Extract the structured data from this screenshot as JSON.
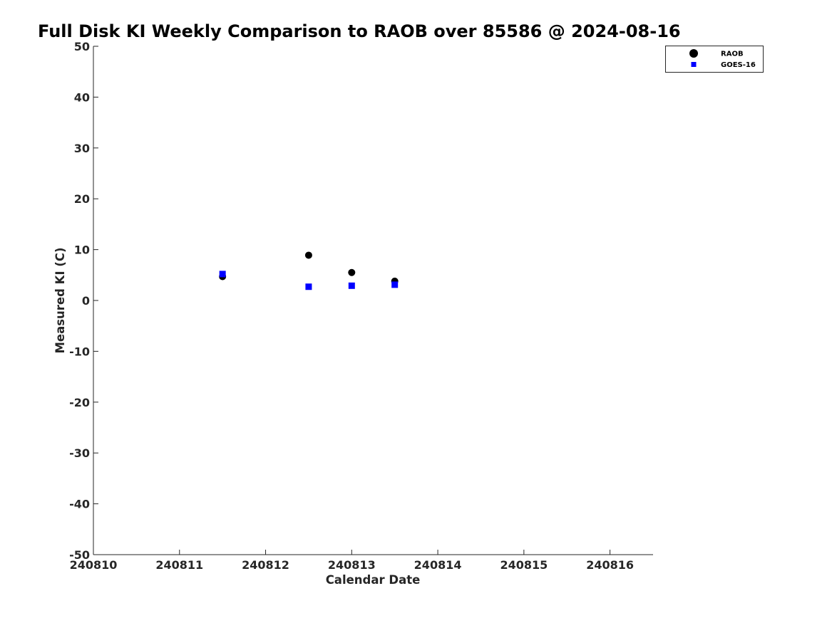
{
  "chart_data": {
    "type": "scatter",
    "title": "Full Disk KI Weekly Comparison to RAOB over 85586 @ 2024-08-16",
    "xlabel": "Calendar Date",
    "ylabel": "Measured KI (C)",
    "xlim": [
      240810,
      240816.5
    ],
    "ylim": [
      -50,
      50
    ],
    "x_ticks": [
      240810,
      240811,
      240812,
      240813,
      240814,
      240815,
      240816
    ],
    "x_tick_labels": [
      "240810",
      "240811",
      "240812",
      "240813",
      "240814",
      "240815",
      "240816"
    ],
    "y_ticks": [
      50,
      40,
      30,
      20,
      10,
      0,
      -10,
      -20,
      -30,
      -40,
      -50
    ],
    "y_tick_labels": [
      "50",
      "40",
      "30",
      "20",
      "10",
      "0",
      "-10",
      "-20",
      "-30",
      "-40",
      "-50"
    ],
    "grid": false,
    "legend_position": "top-right",
    "series": [
      {
        "name": "RAOB",
        "marker": "circle",
        "color": "#000000",
        "points": [
          {
            "x": 240811.5,
            "y": 4.7
          },
          {
            "x": 240812.5,
            "y": 8.9
          },
          {
            "x": 240813.0,
            "y": 5.5
          },
          {
            "x": 240813.5,
            "y": 3.8
          }
        ]
      },
      {
        "name": "GOES-16",
        "marker": "square",
        "color": "#0000ff",
        "points": [
          {
            "x": 240811.5,
            "y": 5.2
          },
          {
            "x": 240812.5,
            "y": 2.7
          },
          {
            "x": 240813.0,
            "y": 2.9
          },
          {
            "x": 240813.5,
            "y": 3.1
          }
        ]
      }
    ]
  }
}
